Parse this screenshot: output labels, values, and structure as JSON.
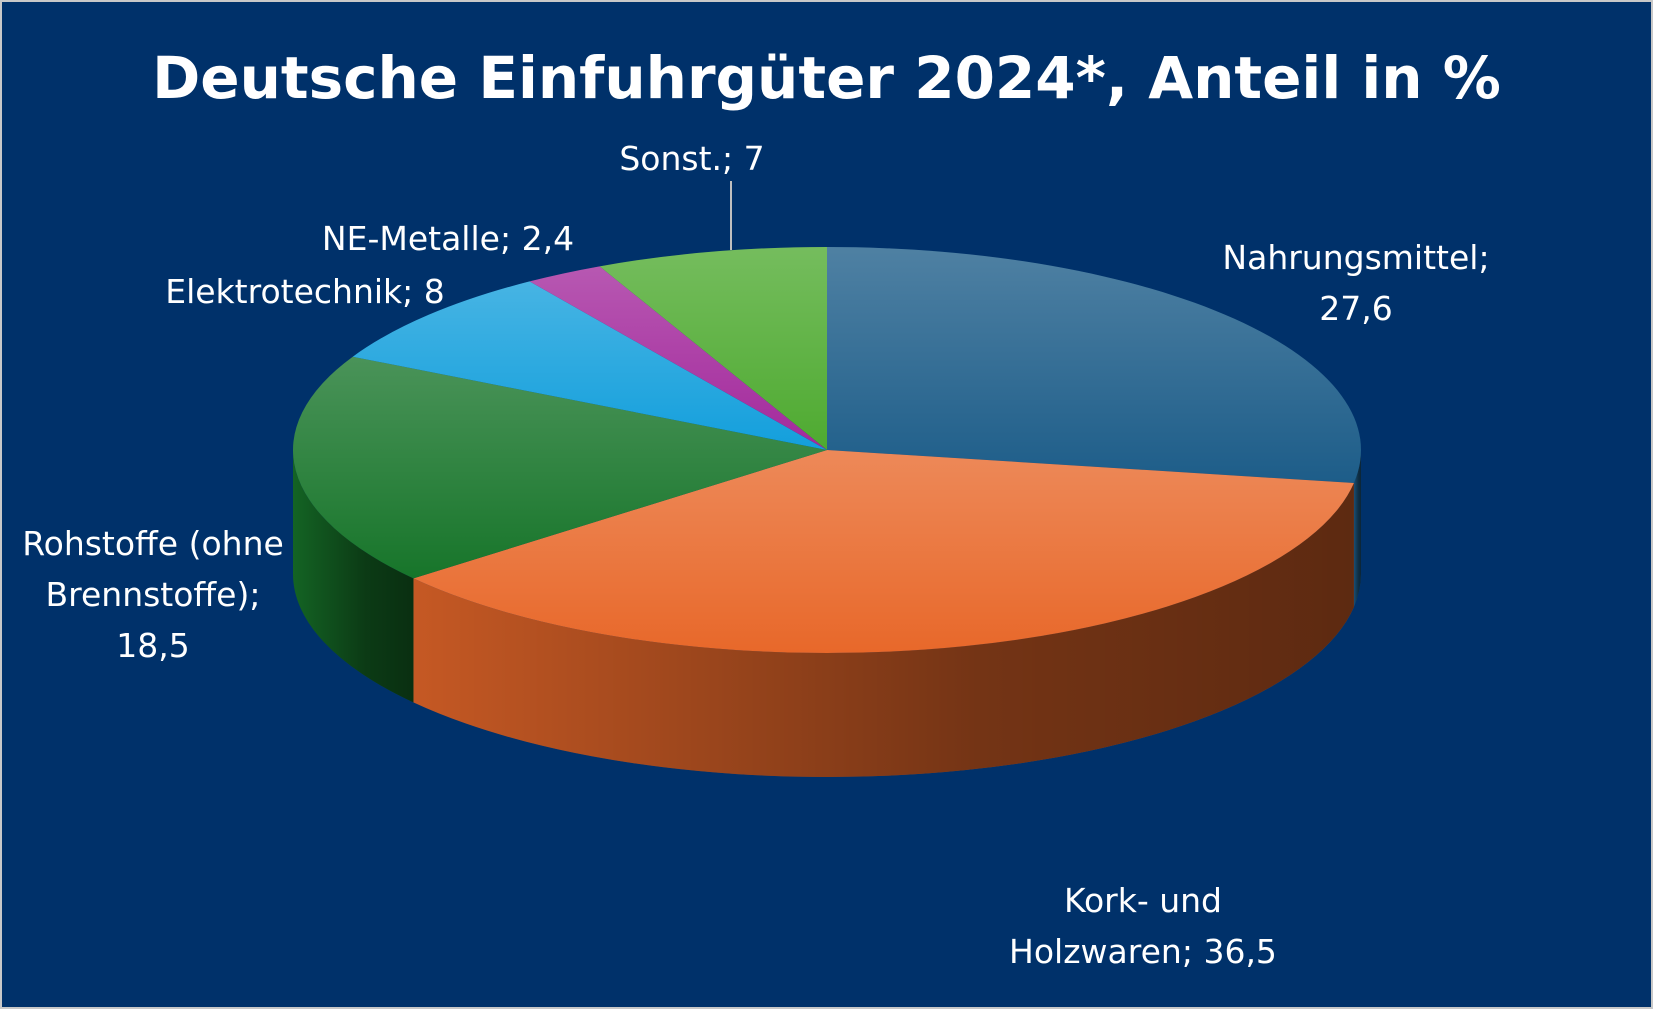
{
  "chart_data": {
    "type": "pie",
    "title": "Deutsche Einfuhrgüter 2024*, Anteil in %",
    "categories": [
      "Nahrungsmittel",
      "Kork- und Holzwaren",
      "Rohstoffe (ohne Brennstoffe)",
      "Elektrotechnik",
      "NE-Metalle",
      "Sonst."
    ],
    "values": [
      27.6,
      36.5,
      18.5,
      8,
      2.4,
      7
    ],
    "value_labels": [
      "27,6",
      "36,5",
      "18,5",
      "8",
      "2,4",
      "7"
    ],
    "label_separator": ";",
    "colors": [
      "#1d5d89",
      "#e8682a",
      "#17752a",
      "#139fdc",
      "#a3299c",
      "#4eaa30"
    ]
  }
}
